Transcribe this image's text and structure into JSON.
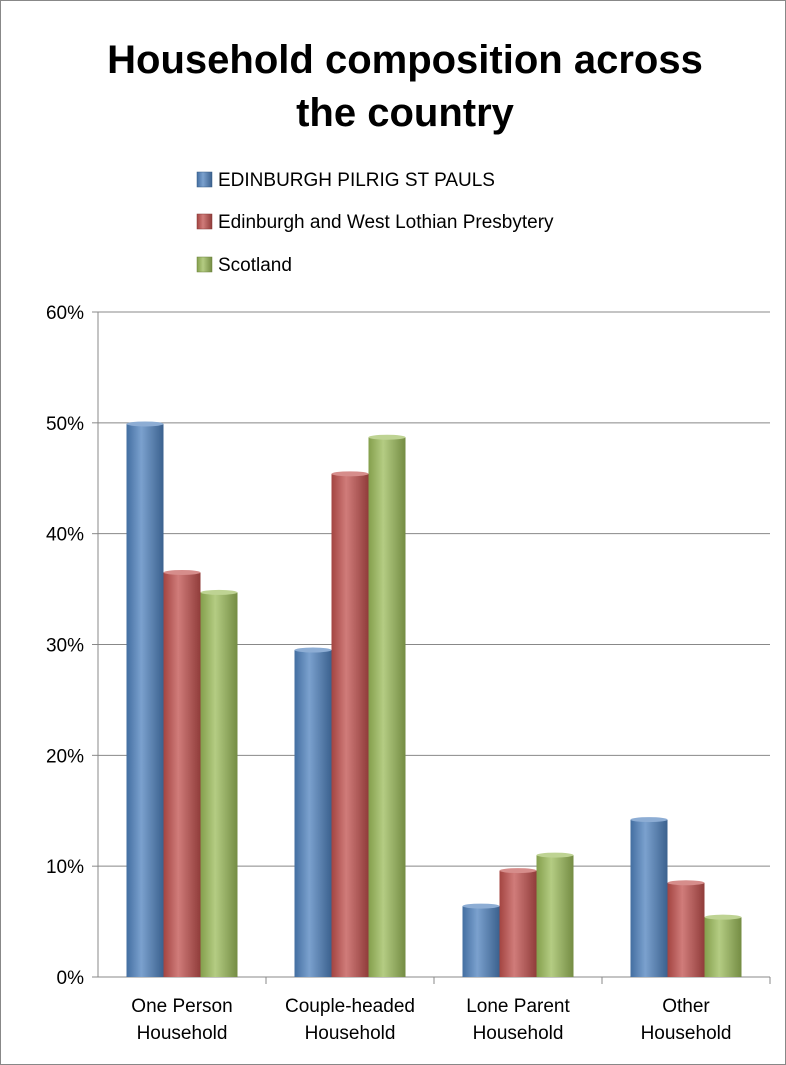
{
  "chart_data": {
    "type": "bar",
    "title": [
      "Household composition across",
      "the country"
    ],
    "categories": [
      [
        "One Person",
        "Household"
      ],
      [
        "Couple-headed",
        "Household"
      ],
      [
        "Lone Parent",
        "Household"
      ],
      [
        "Other",
        "Household"
      ]
    ],
    "series": [
      {
        "name": "EDINBURGH PILRIG ST PAULS",
        "color": "#4f81bd",
        "values": [
          49.9,
          29.5,
          6.4,
          14.2
        ]
      },
      {
        "name": "Edinburgh and West Lothian Presbytery",
        "color": "#c0504d",
        "values": [
          36.5,
          45.4,
          9.6,
          8.5
        ]
      },
      {
        "name": "Scotland",
        "color": "#9bbb59",
        "values": [
          34.7,
          48.7,
          11.0,
          5.4
        ]
      }
    ],
    "ylim": [
      0,
      60
    ],
    "yticks": [
      0,
      10,
      20,
      30,
      40,
      50,
      60
    ],
    "ytick_suffix": "%",
    "grid": true,
    "legend_position": "top"
  }
}
